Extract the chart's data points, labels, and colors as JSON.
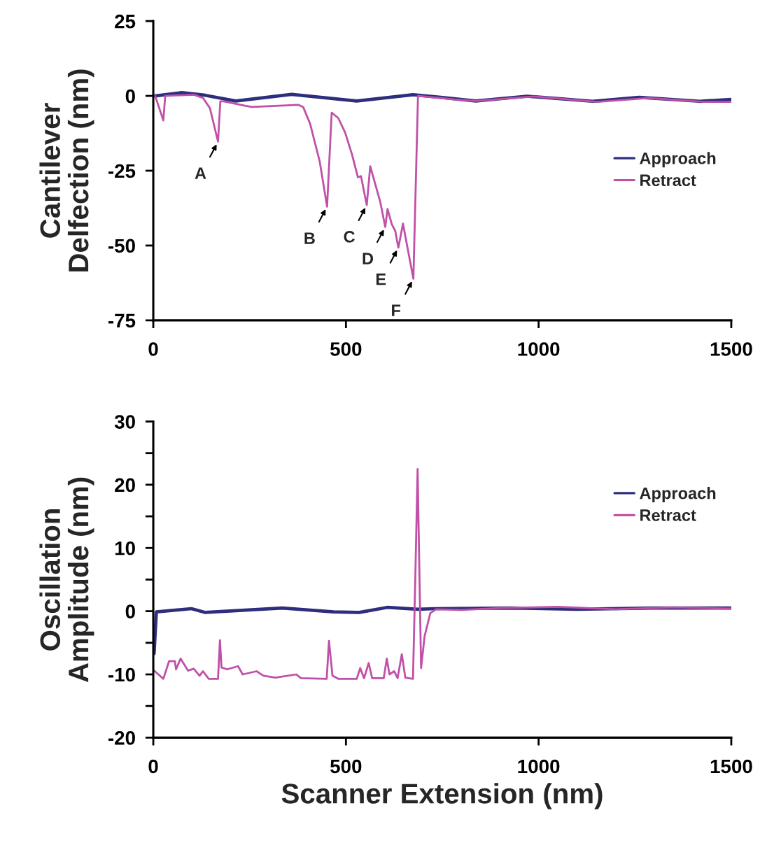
{
  "chart_data": [
    {
      "type": "line",
      "ylabel": "Cantilever\nDelfection (nm)",
      "xlim": [
        0,
        1500
      ],
      "xticks": [
        0,
        500,
        1000,
        1500
      ],
      "ylim": [
        -75,
        25
      ],
      "yticks": [
        -75,
        -50,
        -25,
        0,
        25
      ],
      "grid": false,
      "legend": "right",
      "marker": "none",
      "line_style": "solid",
      "series": [
        {
          "name": "Approach",
          "color": "#2e2e7e",
          "x": [
            5,
            74,
            135,
            214,
            359,
            528,
            674,
            746,
            837,
            970,
            1140,
            1261,
            1418,
            1500
          ],
          "values": [
            0,
            1.1,
            0.2,
            -1.7,
            0.5,
            -1.7,
            0.4,
            -0.5,
            -1.7,
            -0.1,
            -1.8,
            -0.5,
            -1.8,
            -1.2
          ]
        },
        {
          "name": "Retract",
          "color": "#c050a8",
          "x": [
            5,
            26,
            31,
            105,
            129,
            147,
            168,
            174,
            183,
            238,
            256,
            377,
            389,
            407,
            432,
            451,
            463,
            480,
            498,
            516,
            531,
            539,
            554,
            563,
            589,
            602,
            608,
            619,
            628,
            636,
            648,
            675,
            687,
            746,
            780,
            837,
            988,
            1152,
            1285,
            1430,
            1500
          ],
          "values": [
            0,
            -8.2,
            0,
            0.4,
            -0.7,
            -4.1,
            -15.3,
            -1.8,
            -1.8,
            -3.3,
            -3.7,
            -3.0,
            -3.7,
            -9.3,
            -22,
            -37,
            -5.6,
            -7.4,
            -12.3,
            -19.7,
            -27.2,
            -26.8,
            -36.5,
            -23.5,
            -35.4,
            -43.8,
            -37.8,
            -42.9,
            -45.1,
            -50.7,
            -42.7,
            -61.1,
            0,
            -0.7,
            -1.2,
            -1.7,
            -0.2,
            -2.0,
            -0.7,
            -2.0,
            -2.0
          ]
        }
      ],
      "annotations": [
        {
          "text": "A",
          "x": 168,
          "y": -15.3
        },
        {
          "text": "B",
          "x": 451,
          "y": -37
        },
        {
          "text": "C",
          "x": 554,
          "y": -36.5
        },
        {
          "text": "D",
          "x": 602,
          "y": -43.8
        },
        {
          "text": "E",
          "x": 636,
          "y": -50.7
        },
        {
          "text": "F",
          "x": 675,
          "y": -61.1
        }
      ]
    },
    {
      "type": "line",
      "ylabel": "Oscillation\nAmplitude (nm)",
      "xlabel": "Scanner Extension (nm)",
      "xlim": [
        0,
        1500
      ],
      "xticks": [
        0,
        500,
        1000,
        1500
      ],
      "ylim": [
        -20,
        30
      ],
      "yticks": [
        -20,
        {
          "value": -15,
          "label": null
        },
        -10,
        {
          "value": -5,
          "label": null
        },
        0,
        {
          "value": 5,
          "label": null
        },
        10,
        {
          "value": 15,
          "label": null
        },
        20,
        {
          "value": 25,
          "label": null
        },
        30
      ],
      "grid": false,
      "legend": "top right",
      "marker": "none",
      "line_style": "solid",
      "series": [
        {
          "name": "Approach",
          "color": "#2e2e7e",
          "x": [
            2,
            8,
            99,
            135,
            335,
            468,
            535,
            607,
            686,
            734,
            928,
            1100,
            1300,
            1500
          ],
          "values": [
            -6.7,
            -0.1,
            0.4,
            -0.2,
            0.5,
            -0.1,
            -0.2,
            0.6,
            0.3,
            0.4,
            0.5,
            0.3,
            0.5,
            0.5
          ]
        },
        {
          "name": "Retract",
          "color": "#c050a8",
          "x": [
            2,
            26,
            41,
            56,
            59,
            71,
            90,
            105,
            120,
            129,
            144,
            168,
            173,
            177,
            192,
            220,
            232,
            268,
            286,
            317,
            371,
            383,
            450,
            456,
            465,
            480,
            528,
            537,
            547,
            559,
            568,
            598,
            606,
            613,
            625,
            634,
            645,
            654,
            674,
            680,
            686,
            689,
            695,
            704,
            719,
            734,
            800,
            900,
            1050,
            1200,
            1350,
            1500
          ],
          "values": [
            -9.4,
            -10.7,
            -7.9,
            -7.9,
            -9.2,
            -7.5,
            -9.4,
            -9.1,
            -10.2,
            -9.5,
            -10.7,
            -10.7,
            -4.6,
            -8.9,
            -9.2,
            -8.7,
            -10.0,
            -9.5,
            -10.2,
            -10.5,
            -10.0,
            -10.6,
            -10.7,
            -4.7,
            -10.2,
            -10.7,
            -10.7,
            -9.0,
            -10.6,
            -8.2,
            -10.6,
            -10.6,
            -7.5,
            -10.0,
            -9.5,
            -10.6,
            -6.8,
            -10.5,
            -10.7,
            5.3,
            22.5,
            11.8,
            -9.0,
            -4.0,
            -0.3,
            0.3,
            0.2,
            0.5,
            0.7,
            0.3,
            0.6,
            0.4
          ]
        }
      ]
    }
  ]
}
